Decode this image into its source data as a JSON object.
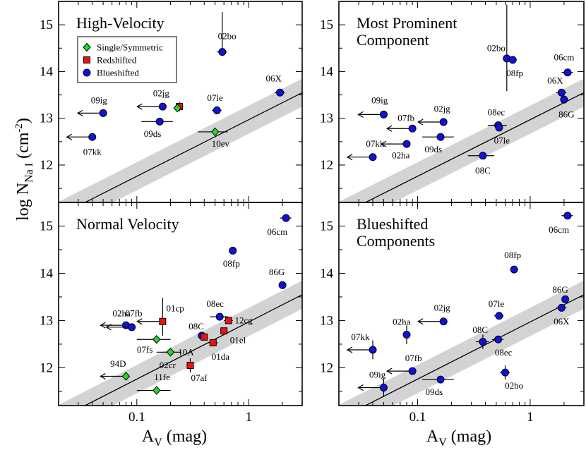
{
  "figure": {
    "y_axis_label": "log N",
    "y_axis_sub": "Na I",
    "y_axis_unit": "(cm",
    "y_axis_exp": "-2",
    "y_axis_close": ")",
    "x_axis_label": "A",
    "x_axis_sub": "V",
    "x_axis_unit": "(mag)",
    "x_ticks": [
      {
        "v": 0.1,
        "label": "0.1"
      },
      {
        "v": 1,
        "label": "1"
      }
    ],
    "y_ticks": [
      {
        "v": 12,
        "label": "12"
      },
      {
        "v": 13,
        "label": "13"
      },
      {
        "v": 14,
        "label": "14"
      },
      {
        "v": 15,
        "label": "15"
      }
    ],
    "legend": [
      {
        "label": "Single/Symmetric",
        "marker": "diamond",
        "color": "#22dd22"
      },
      {
        "label": "Redshifted",
        "marker": "square",
        "color": "#ee1111"
      },
      {
        "label": "Blueshifted",
        "marker": "circle",
        "color": "#1111dd"
      }
    ]
  },
  "chart_data": [
    {
      "type": "scatter",
      "title_lines": [
        "High-Velocity"
      ],
      "xscale": "log",
      "xlim": [
        0.02,
        3.0
      ],
      "ylim": [
        11.2,
        15.5
      ],
      "fit": {
        "slope": 1.21,
        "intercept": 12.97,
        "band": 0.3
      },
      "points": [
        {
          "name": "02bo",
          "x": 0.58,
          "y": 14.42,
          "xerr": 0.06,
          "yerr_up": 0.85,
          "yerr_dn": 0.0,
          "cls": "blue",
          "lbl": "02bo",
          "lx": 0.64,
          "ly": 14.75
        },
        {
          "name": "06X",
          "x": 1.9,
          "y": 13.55,
          "xerr": 0.2,
          "cls": "blue",
          "lbl": "06X",
          "lx": 1.67,
          "ly": 13.85
        },
        {
          "name": "07le",
          "x": 0.52,
          "y": 13.17,
          "xerr": 0.05,
          "cls": "blue",
          "lbl": "07le",
          "lx": 0.5,
          "ly": 13.43
        },
        {
          "name": "02jg",
          "x": 0.17,
          "y": 13.25,
          "xerr": 0.015,
          "arrow": "left",
          "cls": "blue",
          "lbl": "02jg",
          "lx": 0.165,
          "ly": 13.53
        },
        {
          "name": "09ig",
          "x": 0.05,
          "y": 13.11,
          "xerr": 0.0,
          "arrow": "left",
          "cls": "blue",
          "lbl": "09ig",
          "lx": 0.046,
          "ly": 13.38
        },
        {
          "name": "07kk",
          "x": 0.04,
          "y": 12.6,
          "arrow": "left",
          "cls": "blue",
          "lbl": "07kk",
          "lx": 0.04,
          "ly": 12.28
        },
        {
          "name": "09ds",
          "x": 0.16,
          "y": 12.93,
          "xerr": 0.05,
          "cls": "blue",
          "lbl": "09ds",
          "lx": 0.138,
          "ly": 12.66
        },
        {
          "name": "red-hv",
          "x": 0.24,
          "y": 13.25,
          "xerr": 0.02,
          "yerr_up": 0.1,
          "yerr_dn": 0.1,
          "cls": "red"
        },
        {
          "name": "green-hv",
          "x": 0.23,
          "y": 13.22,
          "cls": "green"
        },
        {
          "name": "10ev",
          "x": 0.5,
          "y": 12.71,
          "xerr": 0.15,
          "cls": "green",
          "lbl": "10ev",
          "lx": 0.56,
          "ly": 12.45
        }
      ]
    },
    {
      "type": "scatter",
      "title_lines": [
        "Most Prominent",
        "Component"
      ],
      "xscale": "log",
      "xlim": [
        0.02,
        3.0
      ],
      "ylim": [
        11.2,
        15.5
      ],
      "fit": {
        "slope": 1.21,
        "intercept": 12.97,
        "band": 0.3
      },
      "points": [
        {
          "name": "02bo",
          "x": 0.62,
          "y": 14.28,
          "yerr_up": 1.15,
          "yerr_dn": 0.7,
          "cls": "blue",
          "lbl": "02bo",
          "lx": 0.5,
          "ly": 14.5
        },
        {
          "name": "08fp",
          "x": 0.7,
          "y": 14.25,
          "xerr": 0.04,
          "cls": "blue",
          "lbl": "08fp",
          "lx": 0.73,
          "ly": 13.96
        },
        {
          "name": "06cm",
          "x": 2.15,
          "y": 13.98,
          "xerr": 0.25,
          "cls": "blue",
          "lbl": "06cm",
          "lx": 2.0,
          "ly": 14.3
        },
        {
          "name": "06X",
          "x": 1.9,
          "y": 13.55,
          "xerr": 0.2,
          "cls": "blue",
          "lbl": "06X",
          "lx": 1.67,
          "ly": 13.8
        },
        {
          "name": "86G",
          "x": 2.0,
          "y": 13.4,
          "cls": "blue",
          "lbl": "86G",
          "lx": 2.1,
          "ly": 13.08
        },
        {
          "name": "09ig",
          "x": 0.05,
          "y": 13.08,
          "arrow": "left",
          "cls": "blue",
          "lbl": "09ig",
          "lx": 0.046,
          "ly": 13.38
        },
        {
          "name": "02jg",
          "x": 0.17,
          "y": 12.92,
          "arrow": "left",
          "cls": "blue",
          "lbl": "02jg",
          "lx": 0.165,
          "ly": 13.2
        },
        {
          "name": "07fb",
          "x": 0.09,
          "y": 12.78,
          "arrow": "left",
          "cls": "blue",
          "lbl": "07fb",
          "lx": 0.079,
          "ly": 13.0
        },
        {
          "name": "08ec",
          "x": 0.52,
          "y": 12.85,
          "xerr": 0.1,
          "cls": "blue",
          "lbl": "08ec",
          "lx": 0.5,
          "ly": 13.12
        },
        {
          "name": "07le",
          "x": 0.53,
          "y": 12.8,
          "cls": "blue",
          "lbl": "07le",
          "lx": 0.56,
          "ly": 12.52
        },
        {
          "name": "09ds",
          "x": 0.16,
          "y": 12.6,
          "xerr": 0.05,
          "cls": "blue",
          "lbl": "09ds",
          "lx": 0.138,
          "ly": 12.33
        },
        {
          "name": "07kk",
          "x": 0.04,
          "y": 12.17,
          "arrow": "left",
          "cls": "blue",
          "lbl": "07kk",
          "lx": 0.042,
          "ly": 12.45
        },
        {
          "name": "02ha",
          "x": 0.08,
          "y": 12.45,
          "arrow": "left",
          "cls": "blue",
          "lbl": "02ha",
          "lx": 0.071,
          "ly": 12.2
        },
        {
          "name": "08C",
          "x": 0.38,
          "y": 12.2,
          "xerr": 0.1,
          "cls": "blue",
          "lbl": "08C",
          "lx": 0.38,
          "ly": 11.88
        }
      ]
    },
    {
      "type": "scatter",
      "title_lines": [
        "Normal Velocity"
      ],
      "xscale": "log",
      "xlim": [
        0.02,
        3.0
      ],
      "ylim": [
        11.2,
        15.5
      ],
      "fit": {
        "slope": 1.21,
        "intercept": 12.97,
        "band": 0.3
      },
      "points": [
        {
          "name": "06cm",
          "x": 2.15,
          "y": 15.17,
          "xerr": 0.25,
          "cls": "blue",
          "lbl": "06cm",
          "lx": 1.8,
          "ly": 14.87
        },
        {
          "name": "08fp",
          "x": 0.72,
          "y": 14.48,
          "xerr": 0.05,
          "cls": "blue",
          "lbl": "08fp",
          "lx": 0.7,
          "ly": 14.2
        },
        {
          "name": "86G",
          "x": 2.0,
          "y": 13.75,
          "cls": "blue",
          "lbl": "86G",
          "lx": 1.78,
          "ly": 14.02
        },
        {
          "name": "02ha",
          "x": 0.08,
          "y": 12.9,
          "arrow": "left",
          "cls": "blue",
          "lbl": "02ha",
          "lx": 0.073,
          "ly": 13.15
        },
        {
          "name": "07fb",
          "x": 0.09,
          "y": 12.86,
          "arrow": "left",
          "cls": "blue",
          "lbl": "07fb",
          "lx": 0.094,
          "ly": 13.15
        },
        {
          "name": "08C",
          "x": 0.38,
          "y": 12.68,
          "cls": "blue",
          "lbl": "08C",
          "lx": 0.34,
          "ly": 12.87
        },
        {
          "name": "08ec",
          "x": 0.55,
          "y": 13.08,
          "xerr": 0.1,
          "cls": "blue",
          "lbl": "08ec",
          "lx": 0.5,
          "ly": 13.35
        },
        {
          "name": "01cp",
          "x": 0.17,
          "y": 12.98,
          "yerr_up": 0.5,
          "yerr_dn": 0.3,
          "arrow": "left",
          "cls": "red",
          "lbl": "01cp",
          "lx": 0.22,
          "ly": 13.25
        },
        {
          "name": "12cg",
          "x": 0.66,
          "y": 13.0,
          "xerr": 0.06,
          "cls": "red",
          "lbl": "12cg",
          "lx": 0.9,
          "ly": 13.0
        },
        {
          "name": "01el",
          "x": 0.6,
          "y": 12.78,
          "cls": "red",
          "lbl": "01el",
          "lx": 0.8,
          "ly": 12.58
        },
        {
          "name": "01da",
          "x": 0.48,
          "y": 12.53,
          "xerr": 0.05,
          "cls": "red",
          "lbl": "01da",
          "lx": 0.56,
          "ly": 12.23
        },
        {
          "name": "07af",
          "x": 0.3,
          "y": 12.05,
          "yerr_up": 0.15,
          "yerr_dn": 0.15,
          "cls": "red",
          "lbl": "07af",
          "lx": 0.36,
          "ly": 11.78
        },
        {
          "name": "red-08C",
          "x": 0.4,
          "y": 12.65,
          "cls": "red"
        },
        {
          "name": "07fs",
          "x": 0.15,
          "y": 12.6,
          "xerr": 0.05,
          "cls": "green",
          "lbl": "07fs",
          "lx": 0.118,
          "ly": 12.38
        },
        {
          "name": "10A",
          "x": 0.2,
          "y": 12.33,
          "xerr": 0.05,
          "cls": "green",
          "lbl": "10A",
          "lx": 0.275,
          "ly": 12.33
        },
        {
          "name": "02cr",
          "x": 0.2,
          "y": 12.33,
          "cls": "green",
          "lbl": "02cr",
          "lx": 0.188,
          "ly": 12.05
        },
        {
          "name": "94D",
          "x": 0.08,
          "y": 11.82,
          "arrow": "left",
          "cls": "green",
          "lbl": "94D",
          "lx": 0.068,
          "ly": 12.08
        },
        {
          "name": "11fe",
          "x": 0.15,
          "y": 11.52,
          "xerr": 0.05,
          "cls": "green",
          "lbl": "11fe",
          "lx": 0.168,
          "ly": 11.8
        }
      ]
    },
    {
      "type": "scatter",
      "title_lines": [
        "Blueshifted",
        "Components"
      ],
      "xscale": "log",
      "xlim": [
        0.02,
        3.0
      ],
      "ylim": [
        11.2,
        15.5
      ],
      "fit": {
        "slope": 1.21,
        "intercept": 12.97,
        "band": 0.3
      },
      "points": [
        {
          "name": "06cm",
          "x": 2.15,
          "y": 15.22,
          "xerr": 0.25,
          "cls": "blue",
          "lbl": "06cm",
          "lx": 1.8,
          "ly": 14.92
        },
        {
          "name": "08fp",
          "x": 0.72,
          "y": 14.08,
          "xerr": 0.05,
          "cls": "blue",
          "lbl": "08fp",
          "lx": 0.7,
          "ly": 14.38
        },
        {
          "name": "86G",
          "x": 2.05,
          "y": 13.45,
          "cls": "blue",
          "lbl": "86G",
          "lx": 1.85,
          "ly": 13.65
        },
        {
          "name": "06X",
          "x": 1.9,
          "y": 13.27,
          "xerr": 0.2,
          "cls": "blue",
          "lbl": "06X",
          "lx": 1.9,
          "ly": 12.98
        },
        {
          "name": "07le",
          "x": 0.53,
          "y": 13.1,
          "xerr": 0.05,
          "cls": "blue",
          "lbl": "07le",
          "lx": 0.5,
          "ly": 13.35
        },
        {
          "name": "02jg",
          "x": 0.17,
          "y": 12.98,
          "arrow": "left",
          "cls": "blue",
          "lbl": "02jg",
          "lx": 0.165,
          "ly": 13.27
        },
        {
          "name": "02ha",
          "x": 0.08,
          "y": 12.7,
          "yerr_up": 0.2,
          "yerr_dn": 0.2,
          "cls": "blue",
          "lbl": "02ha",
          "lx": 0.072,
          "ly": 12.97
        },
        {
          "name": "07kk",
          "x": 0.04,
          "y": 12.38,
          "yerr_up": 0.2,
          "yerr_dn": 0.2,
          "arrow": "left",
          "cls": "blue",
          "lbl": "07kk",
          "lx": 0.031,
          "ly": 12.65
        },
        {
          "name": "08C",
          "x": 0.38,
          "y": 12.55,
          "yerr_up": 0.15,
          "yerr_dn": 0.15,
          "xerr": 0.05,
          "cls": "blue",
          "lbl": "08C",
          "lx": 0.36,
          "ly": 12.8
        },
        {
          "name": "08ec",
          "x": 0.52,
          "y": 12.6,
          "xerr": 0.06,
          "cls": "blue",
          "lbl": "08ec",
          "lx": 0.58,
          "ly": 12.32
        },
        {
          "name": "02bo",
          "x": 0.6,
          "y": 11.9,
          "yerr_up": 0.15,
          "yerr_dn": 0.15,
          "xerr": 0.06,
          "cls": "blue",
          "lbl": "02bo",
          "lx": 0.72,
          "ly": 11.62
        },
        {
          "name": "07fb",
          "x": 0.09,
          "y": 11.93,
          "arrow": "left",
          "cls": "blue",
          "lbl": "07fb",
          "lx": 0.092,
          "ly": 12.2
        },
        {
          "name": "09ds",
          "x": 0.16,
          "y": 11.75,
          "xerr": 0.05,
          "cls": "blue",
          "lbl": "09ds",
          "lx": 0.14,
          "ly": 11.48
        },
        {
          "name": "09ig",
          "x": 0.05,
          "y": 11.58,
          "yerr_up": 0.2,
          "yerr_dn": 0.2,
          "arrow": "left",
          "cls": "blue",
          "lbl": "09ig",
          "lx": 0.044,
          "ly": 11.85
        }
      ]
    }
  ]
}
